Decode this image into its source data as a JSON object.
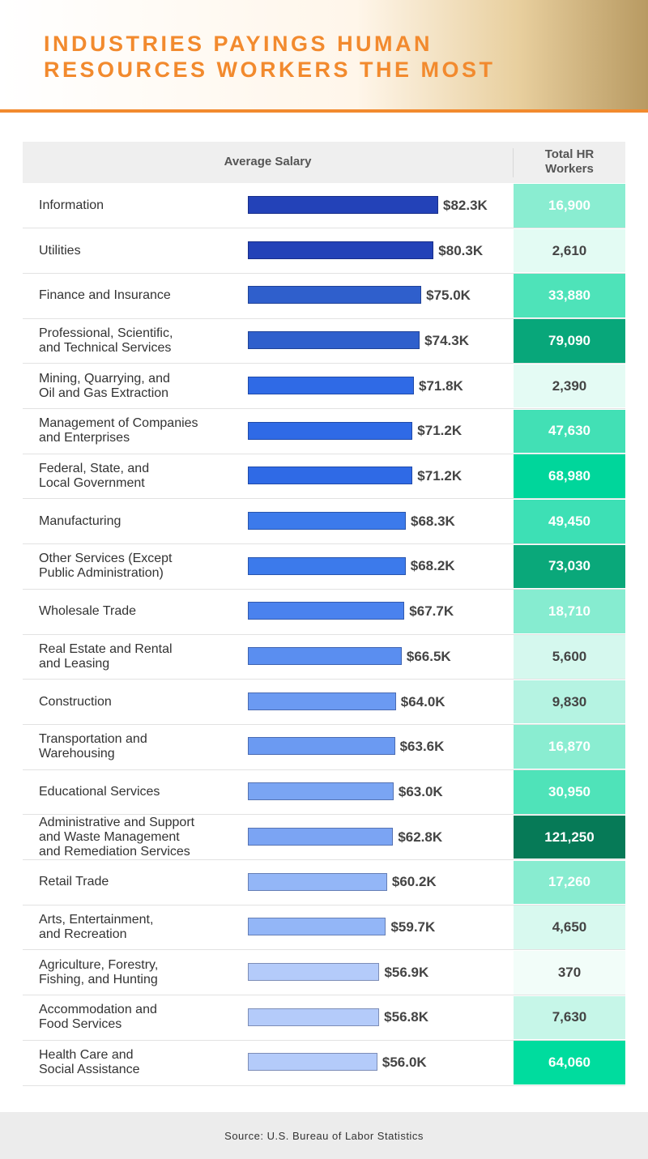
{
  "chart_data": {
    "type": "bar",
    "title": "INDUSTRIES PAYINGS HUMAN\nRESOURCES WORKERS THE MOST",
    "value_header": "Average Salary",
    "workers_header": "Total HR\nWorkers",
    "source": "Source: U.S. Bureau of Labor Statistics",
    "categories": [
      "Information",
      "Utilities",
      "Finance and Insurance",
      "Professional, Scientific,\nand Technical Services",
      "Mining, Quarrying, and\nOil and Gas Extraction",
      "Management of Companies\nand Enterprises",
      "Federal, State, and\nLocal Government",
      "Manufacturing",
      "Other Services (Except\nPublic Administration)",
      "Wholesale Trade",
      "Real Estate and Rental\nand Leasing",
      "Construction",
      "Transportation and\nWarehousing",
      "Educational Services",
      "Administrative and Support\nand Waste Management\nand Remediation Services",
      "Retail Trade",
      "Arts, Entertainment,\nand Recreation",
      "Agriculture, Forestry,\nFishing, and Hunting",
      "Accommodation and\nFood Services",
      "Health Care and\nSocial Assistance"
    ],
    "values": [
      82.3,
      80.3,
      75.0,
      74.3,
      71.8,
      71.2,
      71.2,
      68.3,
      68.2,
      67.7,
      66.5,
      64.0,
      63.6,
      63.0,
      62.8,
      60.2,
      59.7,
      56.9,
      56.8,
      56.0
    ],
    "value_labels": [
      "$82.3K",
      "$80.3K",
      "$75.0K",
      "$74.3K",
      "$71.8K",
      "$71.2K",
      "$71.2K",
      "$68.3K",
      "$68.2K",
      "$67.7K",
      "$66.5K",
      "$64.0K",
      "$63.6K",
      "$63.0K",
      "$62.8K",
      "$60.2K",
      "$59.7K",
      "$56.9K",
      "$56.8K",
      "$56.0K"
    ],
    "colors": [
      "#2342b8",
      "#2342b8",
      "#2f5fcc",
      "#2f5fcc",
      "#2f6ae6",
      "#2f6ae6",
      "#2f6ae6",
      "#3c7aeb",
      "#3c7aeb",
      "#4a82ee",
      "#5a8ef0",
      "#6b9af2",
      "#6b9af2",
      "#7aa5f3",
      "#7ba4f3",
      "#93b6f7",
      "#93b6f7",
      "#b4cbfa",
      "#b4cbfa",
      "#b4cbfa"
    ],
    "workers": {
      "values": [
        16900,
        2610,
        33880,
        79090,
        2390,
        47630,
        68980,
        49450,
        73030,
        18710,
        5600,
        9830,
        16870,
        30950,
        121250,
        17260,
        4650,
        370,
        7630,
        64060
      ],
      "value_labels": [
        "16,900",
        "2,610",
        "33,880",
        "79,090",
        "2,390",
        "47,630",
        "68,980",
        "49,450",
        "73,030",
        "18,710",
        "5,600",
        "9,830",
        "16,870",
        "30,950",
        "121,250",
        "17,260",
        "4,650",
        "370",
        "7,630",
        "64,060"
      ],
      "colors": [
        "#8aedd1",
        "#e3fbf3",
        "#4ee3b9",
        "#08a77a",
        "#e4fbf4",
        "#42e0b5",
        "#00d69b",
        "#3de0b5",
        "#0aa87a",
        "#86ecd0",
        "#d5f8ee",
        "#b5f3e2",
        "#8aedd1",
        "#4fe3b9",
        "#067a57",
        "#88ecd0",
        "#d8f9ef",
        "#f2fdf9",
        "#c6f6e8",
        "#00dc9e"
      ]
    }
  }
}
